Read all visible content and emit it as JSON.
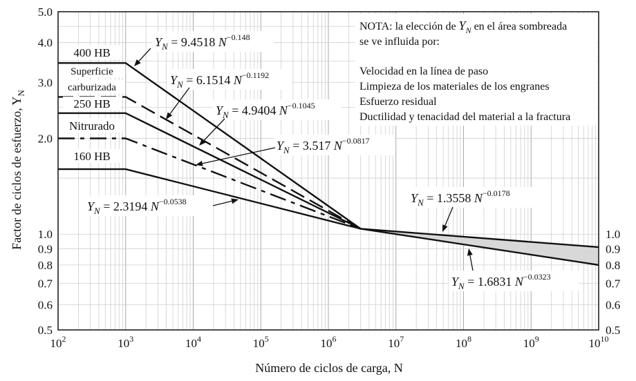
{
  "chart_data": {
    "type": "line",
    "xlabel": "Número de ciclos de carga, N",
    "ylabel": "Factor de ciclos de esfuerzo, Y",
    "ylabel_sub": "N",
    "x_scale": "log",
    "y_scale": "log",
    "xlim": [
      100,
      10000000000
    ],
    "ylim": [
      0.5,
      5.0
    ],
    "grid": true,
    "x_tick_exponents": [
      "2",
      "3",
      "4",
      "5",
      "6",
      "7",
      "8",
      "9",
      "10"
    ],
    "x_tick_base": "10",
    "y_ticks_left": [
      "0.5",
      "0.6",
      "0.7",
      "0.8",
      "0.9",
      "1.0",
      "2.0",
      "3.0",
      "4.0",
      "5.0"
    ],
    "y_ticks_right": [
      "0.5",
      "0.6",
      "0.7",
      "0.8",
      "0.9",
      "1.0"
    ],
    "series": [
      {
        "name": "400 HB",
        "style": "solid",
        "points": [
          [
            100,
            3.45
          ],
          [
            1000,
            3.45
          ],
          [
            3000000,
            1.04
          ]
        ]
      },
      {
        "name": "Superficie carburizada",
        "style": "dashed",
        "points": [
          [
            100,
            2.7
          ],
          [
            1000,
            2.7
          ],
          [
            3000000,
            1.04
          ]
        ]
      },
      {
        "name": "250 HB",
        "style": "solid",
        "points": [
          [
            100,
            2.4
          ],
          [
            1000,
            2.4
          ],
          [
            3000000,
            1.04
          ]
        ]
      },
      {
        "name": "Nitrurado",
        "style": "dashdot",
        "points": [
          [
            100,
            2.0
          ],
          [
            1000,
            2.0
          ],
          [
            3000000,
            1.04
          ]
        ]
      },
      {
        "name": "160 HB",
        "style": "solid",
        "points": [
          [
            100,
            1.6
          ],
          [
            1000,
            1.6
          ],
          [
            3000000,
            1.04
          ]
        ]
      },
      {
        "name": "",
        "style": "solid",
        "points": [
          [
            3000000,
            1.04
          ],
          [
            10000000000,
            0.91
          ]
        ]
      },
      {
        "name": "",
        "style": "solid",
        "points": [
          [
            3000000,
            1.04
          ],
          [
            10000000000,
            0.8
          ]
        ]
      }
    ],
    "series_labels": [
      "400 HB",
      "Superficie",
      "carburizada",
      "250 HB",
      "Nitrurado",
      "160 HB"
    ],
    "equations": [
      {
        "coef": "9.4518",
        "exp": "−0.148"
      },
      {
        "coef": "6.1514",
        "exp": "−0.1192"
      },
      {
        "coef": "4.9404",
        "exp": "−0.1045"
      },
      {
        "coef": "3.517",
        "exp": "−0.0817"
      },
      {
        "coef": "2.3194",
        "exp": "−0.0538"
      },
      {
        "coef": "1.3558",
        "exp": "−0.0178"
      },
      {
        "coef": "1.6831",
        "exp": "−0.0323"
      }
    ],
    "eq_symbol": "Y",
    "eq_sub": "N",
    "eq_var": "N",
    "note": {
      "line1_pre": "NOTA: la elección de",
      "line1_sym": "Y",
      "line1_sub": "N",
      "line1_post": "en el área sombreada",
      "line2": "se ve influida por:",
      "items": [
        "Velocidad en la línea de paso",
        "Limpieza de los materiales de los engranes",
        "Esfuerzo residual",
        "Ductilidad y tenacidad del material a la fractura"
      ]
    },
    "shaded_fill": "#d8d8d8"
  }
}
